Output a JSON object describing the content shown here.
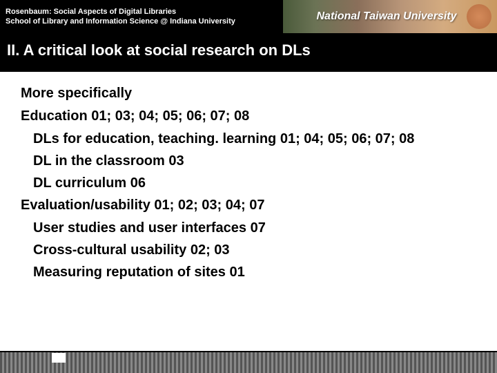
{
  "header": {
    "line1": "Rosenbaum: Social Aspects of Digital Libraries",
    "line2": "School of Library and Information Science @ Indiana University",
    "banner_text": "National Taiwan University"
  },
  "section_title": "II.  A critical look at social research on DLs",
  "content": {
    "l1a": "More specifically",
    "l1b": "Education  01; 03; 04; 05; 06; 07; 08",
    "l2a": "DLs for education, teaching. learning  01; 04; 05; 06; 07; 08",
    "l2b": "DL in the classroom  03",
    "l2c": "DL curriculum  06",
    "l1c": "Evaluation/usability  01; 02; 03; 04; 07",
    "l2d": "User studies and user interfaces  07",
    "l2e": "Cross-cultural usability  02; 03",
    "l2f": "Measuring reputation of sites  01"
  }
}
